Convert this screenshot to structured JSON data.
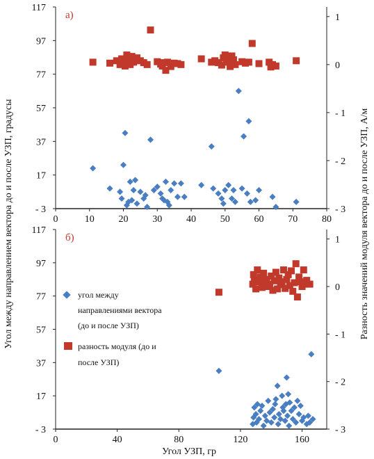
{
  "y_axis_left_label": "Угол между направлением вектора до и после УЗП, градусы",
  "y_axis_right_label": "Разность значений модуля вектора до и после УЗП, А/м",
  "x_axis_label": "Угол УЗП, гр",
  "colors": {
    "series_angle": "#4a7ec2",
    "series_modulus": "#c0392b"
  },
  "legend": {
    "angle_lines": [
      "угол между",
      "направлениями вектора",
      "(до и после УЗП)"
    ],
    "modulus_lines": [
      "разность модуля (до и",
      "после УЗП)"
    ]
  },
  "chart_data": [
    {
      "type": "scatter",
      "panel_label": "а)",
      "x_ticks": [
        "0",
        "10",
        "20",
        "30",
        "40",
        "50",
        "60",
        "70",
        "80"
      ],
      "y_ticks_left": [
        "- 3",
        "17",
        "37",
        "57",
        "77",
        "97",
        "117"
      ],
      "y_ticks_right": [
        "1",
        "0",
        "- 1",
        "- 2",
        "- 3"
      ],
      "xlim": [
        0,
        80
      ],
      "ylim_left": [
        -3,
        117
      ],
      "ylim_right": [
        -3,
        1.2
      ],
      "grid": false,
      "series": [
        {
          "name": "угол между направлениями вектора (до и после УЗП)",
          "axis": "left",
          "marker": "diamond",
          "points": [
            [
              11,
              21
            ],
            [
              16,
              9
            ],
            [
              19,
              7
            ],
            [
              19.5,
              3
            ],
            [
              20,
              23
            ],
            [
              20.5,
              42
            ],
            [
              21,
              -1
            ],
            [
              21.5,
              1
            ],
            [
              22,
              13
            ],
            [
              22.5,
              2
            ],
            [
              23,
              8
            ],
            [
              23.5,
              14
            ],
            [
              24,
              0
            ],
            [
              25,
              7
            ],
            [
              26,
              3
            ],
            [
              26.5,
              5
            ],
            [
              27,
              -2
            ],
            [
              28,
              38
            ],
            [
              29,
              8
            ],
            [
              30,
              10
            ],
            [
              31,
              6
            ],
            [
              31.5,
              3
            ],
            [
              32,
              2
            ],
            [
              32.5,
              13
            ],
            [
              33,
              1
            ],
            [
              33.5,
              -1
            ],
            [
              34,
              8
            ],
            [
              35,
              12
            ],
            [
              36,
              4
            ],
            [
              37,
              12
            ],
            [
              38,
              4
            ],
            [
              43,
              11
            ],
            [
              46,
              34
            ],
            [
              46.5,
              9
            ],
            [
              48,
              6
            ],
            [
              49,
              3
            ],
            [
              49.5,
              0
            ],
            [
              50,
              8
            ],
            [
              51,
              11
            ],
            [
              52,
              3
            ],
            [
              52.5,
              8
            ],
            [
              53,
              1
            ],
            [
              54,
              67
            ],
            [
              55,
              9
            ],
            [
              55.5,
              40
            ],
            [
              56.5,
              6
            ],
            [
              57,
              49
            ],
            [
              57.5,
              1
            ],
            [
              59,
              2
            ],
            [
              60,
              8
            ],
            [
              64,
              4
            ],
            [
              65,
              -2
            ],
            [
              71,
              1
            ]
          ]
        },
        {
          "name": "разность модуля (до и после УЗП)",
          "axis": "right",
          "marker": "square",
          "points": [
            [
              11,
              0.05
            ],
            [
              16,
              0.03
            ],
            [
              18,
              0.08
            ],
            [
              19,
              0.0
            ],
            [
              19.5,
              0.12
            ],
            [
              20,
              0.05
            ],
            [
              20.5,
              -0.03
            ],
            [
              21,
              0.2
            ],
            [
              21.5,
              0.1
            ],
            [
              22,
              0.0
            ],
            [
              22.5,
              0.17
            ],
            [
              23,
              0.05
            ],
            [
              24,
              0.14
            ],
            [
              25,
              0.08
            ],
            [
              26,
              0.04
            ],
            [
              27,
              0.0
            ],
            [
              28,
              0.72
            ],
            [
              30,
              0.06
            ],
            [
              31,
              0.01
            ],
            [
              31.5,
              -0.03
            ],
            [
              32,
              0.04
            ],
            [
              32.5,
              -0.12
            ],
            [
              33,
              0.05
            ],
            [
              34,
              -0.04
            ],
            [
              35,
              0.03
            ],
            [
              36,
              0.02
            ],
            [
              37,
              0.0
            ],
            [
              43,
              0.12
            ],
            [
              46,
              0.05
            ],
            [
              47,
              0.08
            ],
            [
              48,
              0.04
            ],
            [
              49,
              -0.01
            ],
            [
              49.5,
              0.14
            ],
            [
              50,
              0.2
            ],
            [
              50.5,
              0.05
            ],
            [
              51,
              0.17
            ],
            [
              51.5,
              -0.04
            ],
            [
              52,
              0.18
            ],
            [
              52.5,
              0.1
            ],
            [
              53,
              0.0
            ],
            [
              55,
              0.06
            ],
            [
              56,
              0.03
            ],
            [
              57,
              0.05
            ],
            [
              58,
              0.44
            ],
            [
              60,
              0.02
            ],
            [
              63,
              0.05
            ],
            [
              63.5,
              -0.05
            ],
            [
              64,
              0.0
            ],
            [
              65,
              -0.03
            ],
            [
              71,
              0.08
            ]
          ]
        }
      ]
    },
    {
      "type": "scatter",
      "panel_label": "б)",
      "x_ticks": [
        "0",
        "40",
        "80",
        "120",
        "160"
      ],
      "y_ticks_left": [
        "- 3",
        "17",
        "37",
        "57",
        "77",
        "97",
        "117"
      ],
      "y_ticks_right": [
        "1",
        "0",
        "- 1",
        "- 2",
        "- 3"
      ],
      "xlim": [
        0,
        176
      ],
      "ylim_left": [
        -3,
        117
      ],
      "ylim_right": [
        -3,
        1.2
      ],
      "grid": false,
      "series": [
        {
          "name": "угол между направлениями вектора (до и после УЗП)",
          "axis": "left",
          "marker": "diamond",
          "points": [
            [
              106,
              32
            ],
            [
              128,
              0
            ],
            [
              128.5,
              4
            ],
            [
              129,
              10
            ],
            [
              130,
              6
            ],
            [
              130.5,
              1
            ],
            [
              131,
              12
            ],
            [
              132,
              3
            ],
            [
              133,
              8
            ],
            [
              134,
              11
            ],
            [
              135,
              -1
            ],
            [
              136,
              5
            ],
            [
              137,
              2
            ],
            [
              138,
              14
            ],
            [
              139,
              7
            ],
            [
              140,
              1
            ],
            [
              141,
              9
            ],
            [
              142,
              4
            ],
            [
              142.5,
              12
            ],
            [
              143,
              15
            ],
            [
              144,
              23
            ],
            [
              144.5,
              0
            ],
            [
              145,
              6
            ],
            [
              146,
              3
            ],
            [
              147,
              17
            ],
            [
              147.5,
              10
            ],
            [
              148,
              8
            ],
            [
              149,
              2
            ],
            [
              149.5,
              12
            ],
            [
              150,
              28
            ],
            [
              150.5,
              5
            ],
            [
              151,
              18
            ],
            [
              151.5,
              -1
            ],
            [
              152,
              13
            ],
            [
              153,
              8
            ],
            [
              154,
              3
            ],
            [
              155,
              10
            ],
            [
              156,
              1
            ],
            [
              157,
              14
            ],
            [
              158,
              6
            ],
            [
              159,
              11
            ],
            [
              160,
              2
            ],
            [
              161,
              4
            ],
            [
              163,
              0
            ],
            [
              164,
              5
            ],
            [
              165,
              1
            ],
            [
              166,
              42
            ],
            [
              167,
              3
            ]
          ]
        },
        {
          "name": "разность модуля (до и после УЗП)",
          "axis": "right",
          "marker": "square",
          "points": [
            [
              106,
              -0.12
            ],
            [
              128,
              0.05
            ],
            [
              128.5,
              0.25
            ],
            [
              129,
              0.13
            ],
            [
              130,
              -0.05
            ],
            [
              131,
              0.35
            ],
            [
              132,
              0.1
            ],
            [
              133,
              0.2
            ],
            [
              134,
              -0.02
            ],
            [
              135,
              0.28
            ],
            [
              136,
              0.08
            ],
            [
              137,
              0.15
            ],
            [
              138,
              0.0
            ],
            [
              139,
              0.05
            ],
            [
              140,
              0.22
            ],
            [
              141,
              -0.08
            ],
            [
              142,
              0.12
            ],
            [
              143,
              0.3
            ],
            [
              144,
              -0.05
            ],
            [
              145,
              0.18
            ],
            [
              146,
              0.04
            ],
            [
              147,
              0.1
            ],
            [
              148,
              0.35
            ],
            [
              149,
              -0.04
            ],
            [
              150,
              0.15
            ],
            [
              151,
              0.25
            ],
            [
              152,
              0.02
            ],
            [
              153,
              0.33
            ],
            [
              154,
              -0.1
            ],
            [
              155,
              0.08
            ],
            [
              156,
              0.48
            ],
            [
              157,
              -0.22
            ],
            [
              158,
              0.2
            ],
            [
              159,
              0.1
            ],
            [
              160,
              0.0
            ],
            [
              161,
              0.35
            ],
            [
              162,
              0.05
            ],
            [
              163,
              0.13
            ],
            [
              165,
              0.05
            ]
          ]
        }
      ]
    }
  ]
}
